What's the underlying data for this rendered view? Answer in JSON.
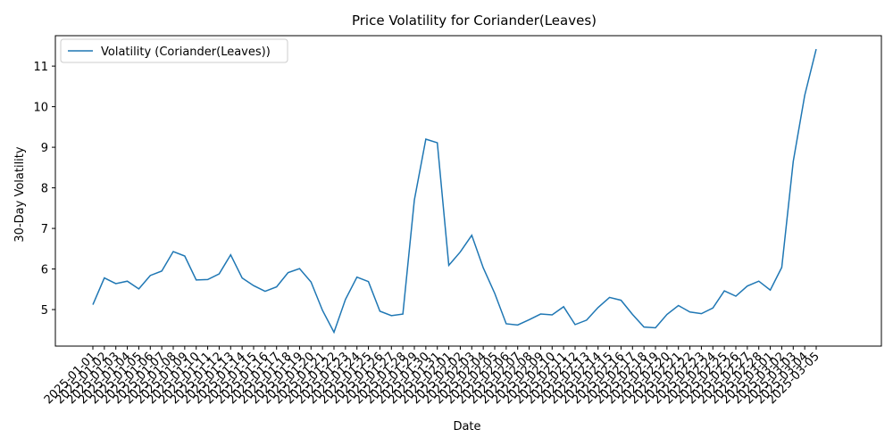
{
  "chart_data": {
    "type": "line",
    "title": "Price Volatility for Coriander(Leaves)",
    "xlabel": "Date",
    "ylabel": "30-Day Volatility",
    "ylim": [
      4.1,
      11.75
    ],
    "yticks": [
      5,
      6,
      7,
      8,
      9,
      10,
      11
    ],
    "grid": false,
    "legend_position": "top-left",
    "series_color": "#1f77b4",
    "x": [
      "2025-01-01",
      "2025-01-02",
      "2025-01-03",
      "2025-01-04",
      "2025-01-05",
      "2025-01-06",
      "2025-01-07",
      "2025-01-08",
      "2025-01-09",
      "2025-01-10",
      "2025-01-11",
      "2025-01-12",
      "2025-01-13",
      "2025-01-14",
      "2025-01-15",
      "2025-01-16",
      "2025-01-17",
      "2025-01-18",
      "2025-01-19",
      "2025-01-20",
      "2025-01-21",
      "2025-01-22",
      "2025-01-23",
      "2025-01-24",
      "2025-01-25",
      "2025-01-26",
      "2025-01-27",
      "2025-01-28",
      "2025-01-29",
      "2025-01-30",
      "2025-01-31",
      "2025-02-01",
      "2025-02-02",
      "2025-02-03",
      "2025-02-04",
      "2025-02-05",
      "2025-02-06",
      "2025-02-07",
      "2025-02-08",
      "2025-02-09",
      "2025-02-10",
      "2025-02-11",
      "2025-02-12",
      "2025-02-13",
      "2025-02-14",
      "2025-02-15",
      "2025-02-16",
      "2025-02-17",
      "2025-02-18",
      "2025-02-19",
      "2025-02-20",
      "2025-02-21",
      "2025-02-22",
      "2025-02-23",
      "2025-02-24",
      "2025-02-25",
      "2025-02-26",
      "2025-02-27",
      "2025-02-28",
      "2025-03-01",
      "2025-03-02",
      "2025-03-03",
      "2025-03-04",
      "2025-03-05"
    ],
    "series": [
      {
        "name": "Volatility (Coriander(Leaves))",
        "values": [
          5.12,
          5.78,
          5.64,
          5.7,
          5.51,
          5.84,
          5.95,
          6.43,
          6.32,
          5.73,
          5.74,
          5.88,
          6.35,
          5.78,
          5.59,
          5.45,
          5.56,
          5.91,
          6.01,
          5.68,
          4.98,
          4.44,
          5.25,
          5.8,
          5.69,
          4.96,
          4.85,
          4.89,
          7.7,
          9.2,
          9.11,
          6.09,
          6.42,
          6.83,
          6.03,
          5.4,
          4.65,
          4.62,
          4.75,
          4.89,
          4.87,
          5.07,
          4.63,
          4.74,
          5.05,
          5.3,
          5.23,
          4.88,
          4.57,
          4.55,
          4.88,
          5.1,
          4.94,
          4.9,
          5.04,
          5.46,
          5.33,
          5.58,
          5.7,
          5.48,
          6.04,
          8.65,
          10.28,
          11.42
        ]
      }
    ]
  }
}
